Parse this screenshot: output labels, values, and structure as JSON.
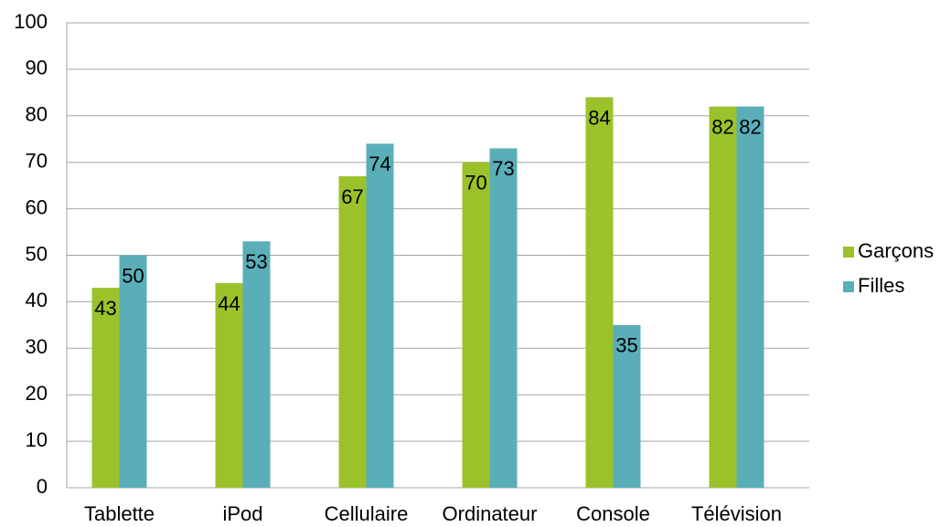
{
  "chart_data": {
    "type": "bar",
    "categories": [
      "Tablette",
      "iPod",
      "Cellulaire",
      "Ordinateur",
      "Console",
      "Télévision"
    ],
    "series": [
      {
        "name": "Garçons",
        "color": "#9bc22a",
        "values": [
          43,
          44,
          67,
          70,
          84,
          82
        ]
      },
      {
        "name": "Filles",
        "color": "#5aaeb8",
        "values": [
          50,
          53,
          74,
          73,
          35,
          82
        ]
      }
    ],
    "ylim": [
      0,
      100
    ],
    "yticks": [
      0,
      10,
      20,
      30,
      40,
      50,
      60,
      70,
      80,
      90,
      100
    ],
    "grid": true,
    "legend": "right"
  }
}
